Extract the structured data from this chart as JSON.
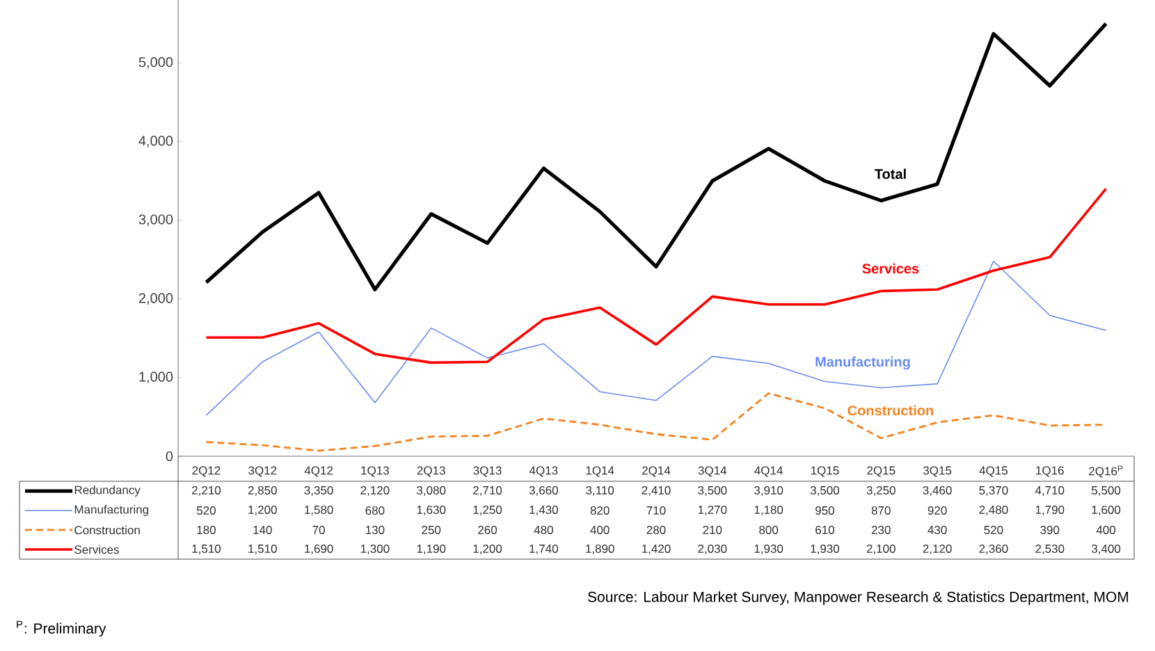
{
  "chart_data": {
    "type": "line",
    "categories": [
      "2Q12",
      "3Q12",
      "4Q12",
      "1Q13",
      "2Q13",
      "3Q13",
      "4Q13",
      "1Q14",
      "2Q14",
      "3Q14",
      "4Q14",
      "1Q15",
      "2Q15",
      "3Q15",
      "4Q15",
      "1Q16",
      "2Q16$^{P}$"
    ],
    "series": [
      {
        "name": "Redundancy",
        "color": "#000000",
        "values": [
          2210,
          2850,
          3350,
          2120,
          3080,
          2710,
          3660,
          3110,
          2410,
          3500,
          3910,
          3500,
          3250,
          3460,
          5370,
          4710,
          5500
        ],
        "value_labels": [
          "2,210",
          "2,850",
          "3,350",
          "2,120",
          "3,080",
          "2,710",
          "3,660",
          "3,110",
          "2,410",
          "3,500",
          "3,910",
          "3,500",
          "3,250",
          "3,460",
          "5,370",
          "4,710",
          "5,500"
        ]
      },
      {
        "name": "Manufacturing",
        "color": "#6a8cf0",
        "values": [
          520,
          1200,
          1580,
          680,
          1630,
          1250,
          1430,
          820,
          710,
          1270,
          1180,
          950,
          870,
          920,
          2480,
          1790,
          1600
        ],
        "value_labels": [
          "520",
          "1,200",
          "1,580",
          "680",
          "1,630",
          "1,250",
          "1,430",
          "820",
          "710",
          "1,270",
          "1,180",
          "950",
          "870",
          "920",
          "2,480",
          "1,790",
          "1,600"
        ]
      },
      {
        "name": "Construction",
        "color": "#f58220",
        "line_style": "dashed",
        "values": [
          180,
          140,
          70,
          130,
          250,
          260,
          480,
          400,
          280,
          210,
          800,
          610,
          230,
          430,
          520,
          390,
          400
        ],
        "value_labels": [
          "180",
          "140",
          "70",
          "130",
          "250",
          "260",
          "480",
          "400",
          "280",
          "210",
          "800",
          "610",
          "230",
          "430",
          "520",
          "390",
          "400"
        ]
      },
      {
        "name": "Services",
        "color": "#ff0000",
        "values": [
          1510,
          1510,
          1690,
          1300,
          1190,
          1200,
          1740,
          1890,
          1420,
          2030,
          1930,
          1930,
          2100,
          2120,
          2360,
          2530,
          3400
        ],
        "value_labels": [
          "1,510",
          "1,510",
          "1,690",
          "1,300",
          "1,190",
          "1,200",
          "1,740",
          "1,890",
          "1,420",
          "2,030",
          "1,930",
          "1,930",
          "2,100",
          "2,120",
          "2,360",
          "2,530",
          "3,400"
        ]
      }
    ],
    "ylim": [
      0,
      5800
    ],
    "yticks": [
      0,
      {
        "value": 1000,
        "label": "1,000"
      },
      {
        "value": 2000,
        "label": "2,000"
      },
      {
        "value": 3000,
        "label": "3,000"
      },
      {
        "value": 4000,
        "label": "4,000"
      },
      {
        "value": 5000,
        "label": "5,000"
      }
    ],
    "line_style": "solid",
    "grid": false,
    "legend": "bottom",
    "annotations": [
      "Total",
      "Manufacturing",
      "Construction",
      "Services",
      "Source: Labour Market Survey, Manpower Research & Statistics Department, MOM",
      "$^{P}$: Preliminary"
    ]
  }
}
